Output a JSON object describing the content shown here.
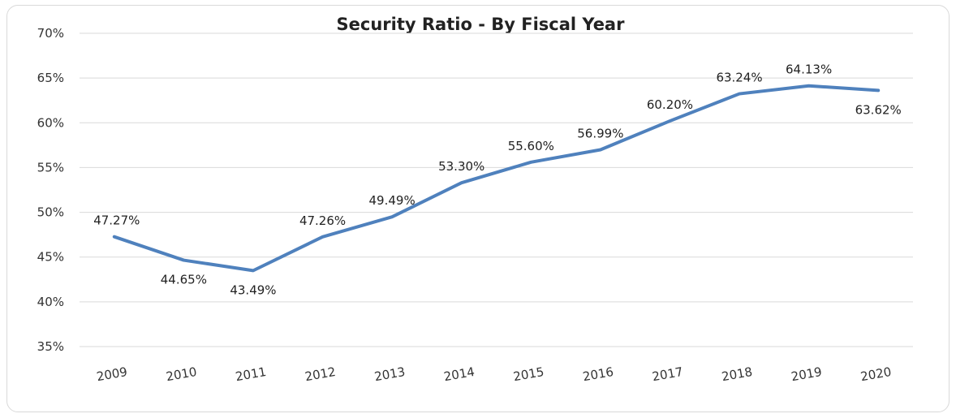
{
  "chart_data": {
    "type": "line",
    "title": "Security Ratio - By Fiscal Year",
    "xlabel": "",
    "ylabel": "",
    "categories": [
      "2009",
      "2010",
      "2011",
      "2012",
      "2013",
      "2014",
      "2015",
      "2016",
      "2017",
      "2018",
      "2019",
      "2020"
    ],
    "series": [
      {
        "values": [
          47.27,
          44.65,
          43.49,
          47.26,
          49.49,
          53.3,
          55.6,
          56.99,
          60.2,
          63.24,
          64.13,
          63.62
        ],
        "data_labels": [
          "47.27%",
          "44.65%",
          "43.49%",
          "47.26%",
          "49.49%",
          "53.30%",
          "55.60%",
          "56.99%",
          "60.20%",
          "63.24%",
          "64.13%",
          "63.62%"
        ],
        "color": "#4f81bd"
      }
    ],
    "ylim": [
      35,
      70
    ],
    "y_ticks": [
      "35%",
      "40%",
      "45%",
      "50%",
      "55%",
      "60%",
      "65%",
      "70%"
    ],
    "y_tick_values": [
      35,
      40,
      45,
      50,
      55,
      60,
      65,
      70
    ],
    "grid": true,
    "legend": "none"
  }
}
